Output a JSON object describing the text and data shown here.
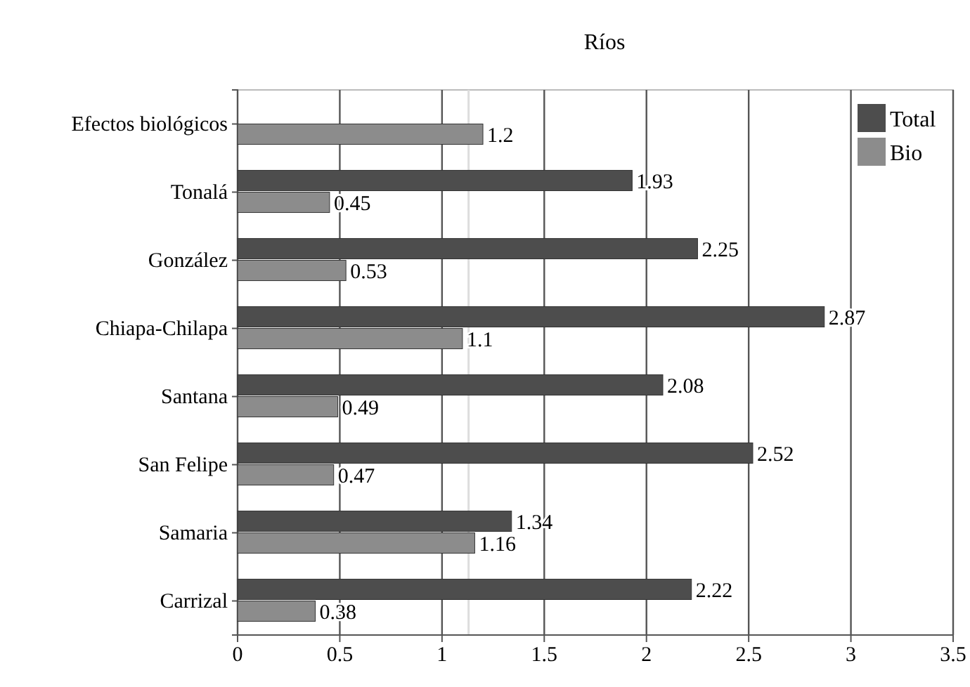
{
  "chart_data": {
    "type": "bar",
    "orientation": "horizontal",
    "title": "Ríos",
    "categories": [
      "Efectos biológicos",
      "Tonalá",
      "González",
      "Chiapa-Chilapa",
      "Santana",
      "San Felipe",
      "Samaria",
      "Carrizal"
    ],
    "series": [
      {
        "name": "Total",
        "color": "#4d4d4d",
        "values": [
          null,
          1.93,
          2.25,
          2.87,
          2.08,
          2.52,
          1.34,
          2.22
        ]
      },
      {
        "name": "Bio",
        "color": "#8c8c8c",
        "values": [
          1.2,
          0.45,
          0.53,
          1.1,
          0.49,
          0.47,
          1.16,
          0.38
        ]
      }
    ],
    "xlim": [
      0,
      3.5
    ],
    "xticks": [
      0,
      0.5,
      1,
      1.5,
      2,
      2.5,
      3,
      3.5
    ],
    "ref_lines": [
      {
        "axis": "x",
        "value": 1.13,
        "color": "#dddddd"
      }
    ],
    "grid": "x",
    "legend": "top right",
    "data_labels": true
  }
}
